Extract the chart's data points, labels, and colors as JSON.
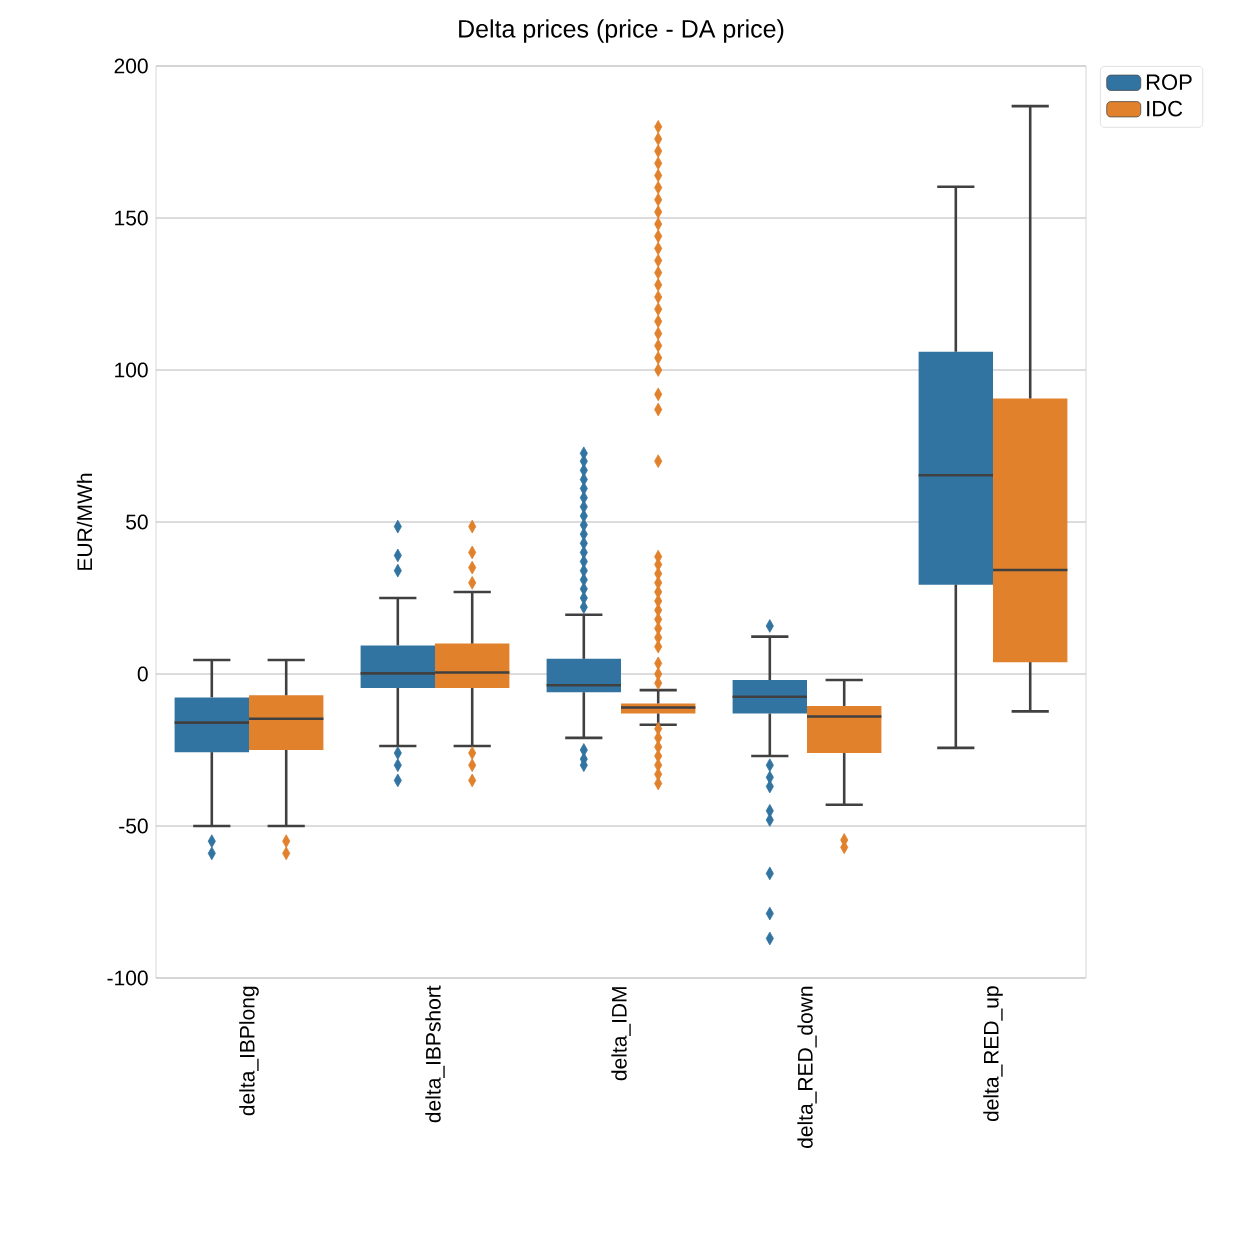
{
  "chart_data": {
    "type": "box",
    "title": "Delta prices (price - DA price)",
    "ylabel": "EUR/MWh",
    "categories": [
      "delta_IBPlong",
      "delta_IBPshort",
      "delta_IDM",
      "delta_RED_down",
      "delta_RED_up"
    ],
    "ylim": [
      -100,
      200
    ],
    "yticks": [
      -100,
      -50,
      0,
      50,
      100,
      150,
      200
    ],
    "grid": "y",
    "legend": "top right",
    "marker": "diamond",
    "series": [
      {
        "name": "ROP",
        "color": "#3274a1",
        "boxes": [
          {
            "low": -50,
            "q1": -25.7,
            "median": -16,
            "q3": -7.7,
            "high": 4.6,
            "outliers": [
              -55,
              -59
            ]
          },
          {
            "low": -23.7,
            "q1": -4.6,
            "median": 0.2,
            "q3": 9.4,
            "high": 25,
            "outliers": [
              48.5,
              39,
              34,
              -26,
              -30,
              -35
            ]
          },
          {
            "low": -21,
            "q1": -6,
            "median": -3.7,
            "q3": 5,
            "high": 19.5,
            "outliers": [
              22,
              25,
              28,
              31,
              34,
              37,
              40,
              43,
              46,
              49,
              52,
              55,
              58,
              61,
              64,
              67,
              70,
              72.6,
              -25,
              -28,
              -30
            ]
          },
          {
            "low": -27,
            "q1": -13,
            "median": -7.5,
            "q3": -2,
            "high": 12.3,
            "outliers": [
              15.8,
              -30,
              -34,
              -37,
              -45,
              -48,
              -65.6,
              -78.8,
              -87
            ]
          },
          {
            "low": -24.3,
            "q1": 29.4,
            "median": 65.4,
            "q3": 106,
            "high": 160.3
          }
        ]
      },
      {
        "name": "IDC",
        "color": "#e1812c",
        "boxes": [
          {
            "low": -50,
            "q1": -25,
            "median": -14.7,
            "q3": -7,
            "high": 4.6,
            "outliers": [
              -55,
              -59
            ]
          },
          {
            "low": -23.7,
            "q1": -4.6,
            "median": 0.5,
            "q3": 10,
            "high": 27,
            "outliers": [
              48.5,
              40,
              35,
              30,
              -26,
              -30,
              -35
            ]
          },
          {
            "low": -16.7,
            "q1": -13,
            "median": -11,
            "q3": -9.7,
            "high": -5.3,
            "outliers": [
              -3,
              0,
              3.5,
              9,
              12,
              15,
              18,
              21,
              24,
              27,
              30,
              33,
              36,
              38.6,
              70,
              87,
              92,
              100,
              104,
              108,
              112,
              116,
              120,
              124,
              128,
              132,
              136,
              140,
              144,
              148,
              152,
              156,
              160,
              164,
              168,
              172,
              176,
              180,
              -18,
              -21,
              -24,
              -27,
              -30,
              -33,
              -36
            ]
          },
          {
            "low": -43,
            "q1": -26,
            "median": -14,
            "q3": -10.5,
            "high": -2,
            "outliers": [
              -54.6,
              -57
            ]
          },
          {
            "low": -12.3,
            "q1": 3.9,
            "median": 34.2,
            "q3": 90.6,
            "high": 186.8
          }
        ]
      }
    ]
  }
}
